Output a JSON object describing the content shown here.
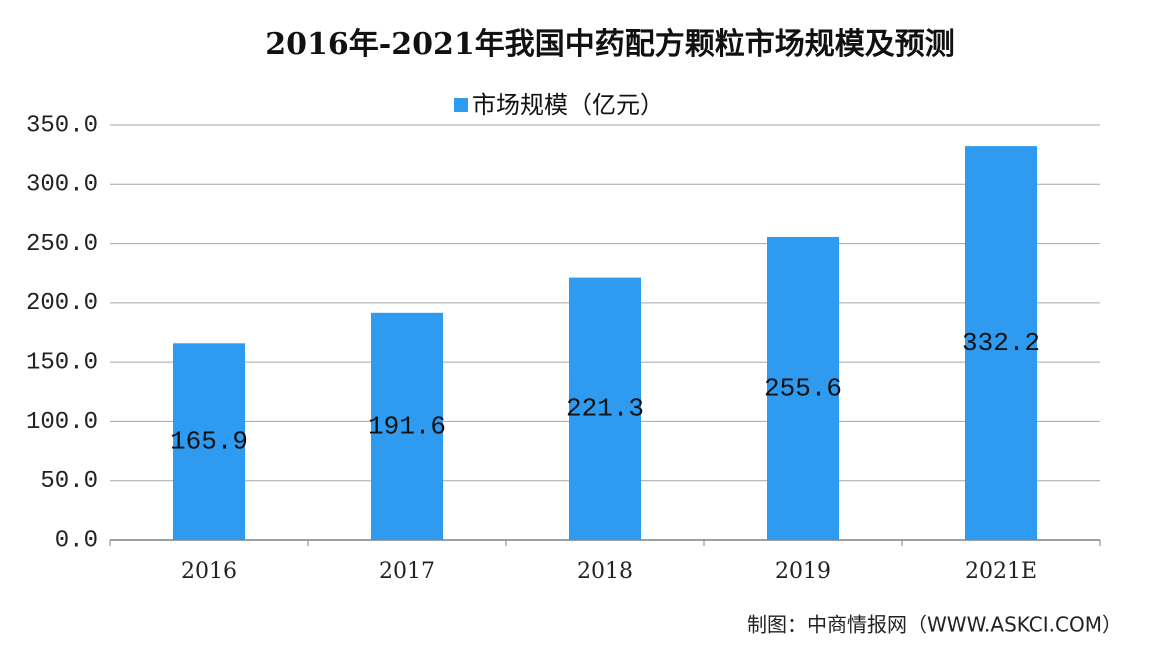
{
  "chart_data": {
    "type": "bar",
    "title": "2016年-2021年我国中药配方颗粒市场规模及预测",
    "legend": "市场规模（亿元）",
    "categories": [
      "2016",
      "2017",
      "2018",
      "2019",
      "2021E"
    ],
    "series": [
      {
        "name": "市场规模（亿元）",
        "color": "#2e9bf0",
        "values": [
          165.9,
          191.6,
          221.3,
          255.6,
          332.2
        ]
      }
    ],
    "ylim": [
      0,
      350
    ],
    "yticks": [
      {
        "value": 0,
        "label": "0.0"
      },
      {
        "value": 50,
        "label": "50.0"
      },
      {
        "value": 100,
        "label": "100.0"
      },
      {
        "value": 150,
        "label": "150.0"
      },
      {
        "value": 200,
        "label": "200.0"
      },
      {
        "value": 250,
        "label": "250.0"
      },
      {
        "value": 300,
        "label": "300.0"
      },
      {
        "value": 350,
        "label": "350.0"
      }
    ],
    "grid": true,
    "source": "制图：中商情报网（WWW.ASKCI.COM）"
  }
}
